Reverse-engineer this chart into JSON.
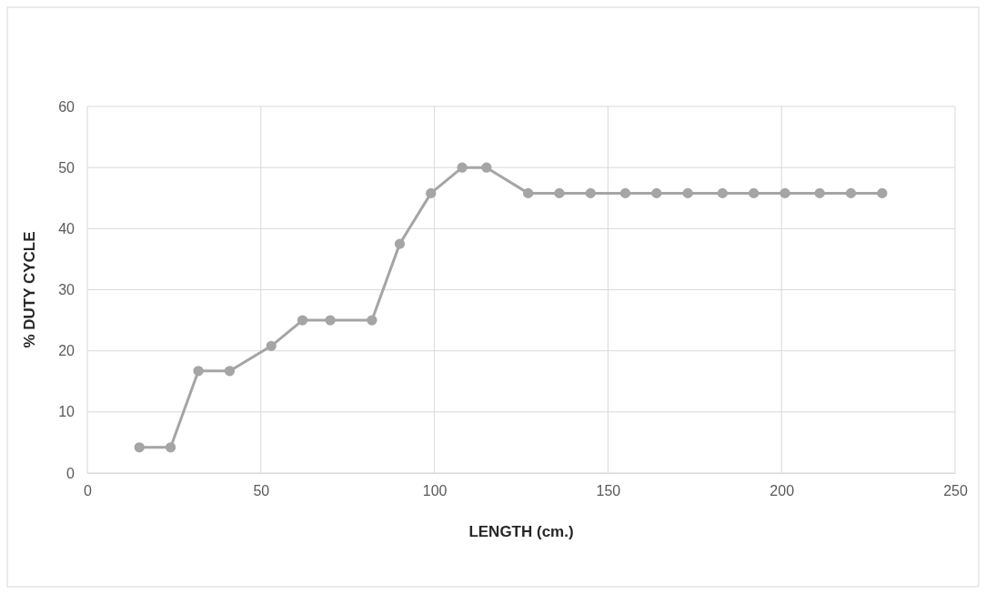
{
  "chart_data": {
    "type": "line",
    "xlabel": "LENGTH (cm.)",
    "ylabel": "% DUTY CYCLE",
    "x": [
      15,
      24,
      32,
      41,
      53,
      62,
      70,
      82,
      90,
      99,
      108,
      115,
      127,
      136,
      145,
      155,
      164,
      173,
      183,
      192,
      201,
      211,
      220,
      229
    ],
    "series": [
      {
        "color": "#a5a5a5",
        "values": [
          4.2,
          4.2,
          16.7,
          16.7,
          20.8,
          25,
          25,
          25,
          37.5,
          45.8,
          50,
          50,
          45.8,
          45.8,
          45.8,
          45.8,
          45.8,
          45.8,
          45.8,
          45.8,
          45.8,
          45.8,
          45.8,
          45.8
        ]
      }
    ],
    "xlim": [
      0,
      250
    ],
    "xticks": [
      0,
      50,
      100,
      150,
      200,
      250
    ],
    "ylim": [
      0,
      60
    ],
    "yticks": [
      0,
      10,
      20,
      30,
      40,
      50,
      60
    ],
    "grid": true,
    "marker": "circle",
    "line_style": "solid"
  }
}
